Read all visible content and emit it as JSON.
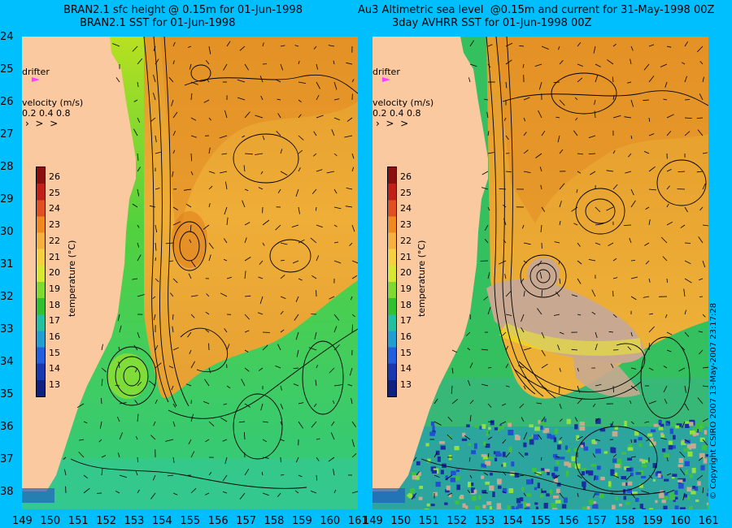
{
  "left_title_line1": "BRAN2.1 sfc height @ 0.15m for 01-Jun-1998",
  "left_title_line2": "BRAN2.1 SST for 01-Jun-1998",
  "right_title_line1": "Au3 Altimetric sea level  @0.15m and current for 31-May-1998 00Z",
  "right_title_line2": "3day AVHRR SST for 01-Jun-1998 00Z",
  "drifter_label": "drifter",
  "velocity_label": "velocity (m/s)",
  "velocity_values": "0.2 0.4 0.8",
  "colorbar_label": "temperature (°C)",
  "colorbar_ticks": [
    "26",
    "25",
    "24",
    "23",
    "22",
    "21",
    "20",
    "19",
    "18",
    "17",
    "16",
    "15",
    "14",
    "13"
  ],
  "y_ticks": [
    "24",
    "25",
    "26",
    "27",
    "28",
    "29",
    "30",
    "31",
    "32",
    "33",
    "34",
    "35",
    "36",
    "37",
    "38"
  ],
  "x_ticks": [
    "149",
    "150",
    "151",
    "152",
    "153",
    "154",
    "155",
    "156",
    "157",
    "158",
    "159",
    "160",
    "161"
  ],
  "copyright": "© Copyright CSIRO 2007  13-May-2007 23:17:28",
  "colors": {
    "background": "#00bfff",
    "land": "#fbc9a0",
    "warm": "#e08a1e",
    "mid": "#f2b230",
    "cool": "#3fd04a",
    "cold": "#20a0c0",
    "cloud": "#c8a890",
    "drifter": "#ff40ff"
  }
}
